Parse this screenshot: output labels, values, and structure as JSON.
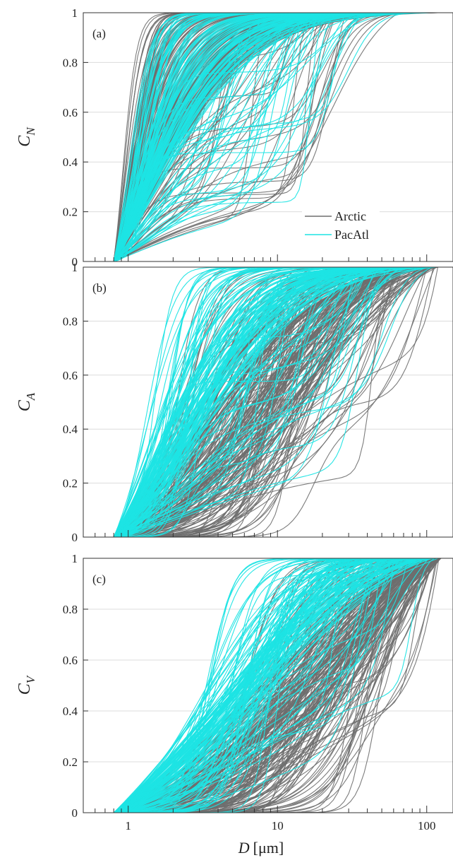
{
  "chart_data": [
    {
      "type": "line",
      "panel_label": "(a)",
      "ylabel": "C",
      "ylabel_sub": "N",
      "xscale": "log",
      "xlim": [
        0.5,
        150
      ],
      "ylim": [
        0,
        1
      ],
      "yticks": [
        "0",
        "0.2",
        "0.4",
        "0.6",
        "0.8",
        "1"
      ],
      "xticks": [],
      "grid": "horizontal",
      "legend": {
        "placement": "bottom-right",
        "entries": [
          {
            "name": "Arctic",
            "color": "#6e6e6e"
          },
          {
            "name": "PacAtl",
            "color": "#1de4e4"
          }
        ]
      },
      "series": [
        {
          "name": "Arctic",
          "color": "#6e6e6e",
          "count": 200,
          "x_start": 0.8,
          "median_x": [
            0.9,
            1.25
          ],
          "max_x": [
            20,
            120
          ]
        },
        {
          "name": "PacAtl",
          "color": "#1de4e4",
          "count": 150,
          "x_start": 0.8,
          "median_x": [
            1.0,
            1.5
          ],
          "max_x": [
            15,
            110
          ]
        }
      ]
    },
    {
      "type": "line",
      "panel_label": "(b)",
      "ylabel": "C",
      "ylabel_sub": "A",
      "xscale": "log",
      "xlim": [
        0.5,
        150
      ],
      "ylim": [
        0,
        1
      ],
      "yticks": [
        "0",
        "0.2",
        "0.4",
        "0.6",
        "0.8",
        "1"
      ],
      "xticks": [],
      "grid": "horizontal",
      "series": [
        {
          "name": "Arctic",
          "color": "#6e6e6e",
          "count": 200,
          "x_start": 0.8,
          "median_x": [
            2.0,
            18.0
          ],
          "max_x": [
            60,
            120
          ]
        },
        {
          "name": "PacAtl",
          "color": "#1de4e4",
          "count": 150,
          "x_start": 0.8,
          "median_x": [
            1.3,
            3.5
          ],
          "max_x": [
            30,
            120
          ]
        }
      ]
    },
    {
      "type": "line",
      "panel_label": "(c)",
      "ylabel": "C",
      "ylabel_sub": "V",
      "xscale": "log",
      "xlim": [
        0.5,
        150
      ],
      "ylim": [
        0,
        1
      ],
      "yticks": [
        "0",
        "0.2",
        "0.4",
        "0.6",
        "0.8",
        "1"
      ],
      "xticks": [
        "1",
        "10",
        "100"
      ],
      "xlabel": "D",
      "xlabel_unit": "[μm]",
      "grid": "horizontal",
      "series": [
        {
          "name": "Arctic",
          "color": "#6e6e6e",
          "count": 200,
          "x_start": 0.8,
          "median_x": [
            6.0,
            55.0
          ],
          "max_x": [
            100,
            125
          ]
        },
        {
          "name": "PacAtl",
          "color": "#1de4e4",
          "count": 150,
          "x_start": 0.8,
          "median_x": [
            3.0,
            12.0
          ],
          "max_x": [
            25,
            120
          ]
        }
      ]
    }
  ]
}
